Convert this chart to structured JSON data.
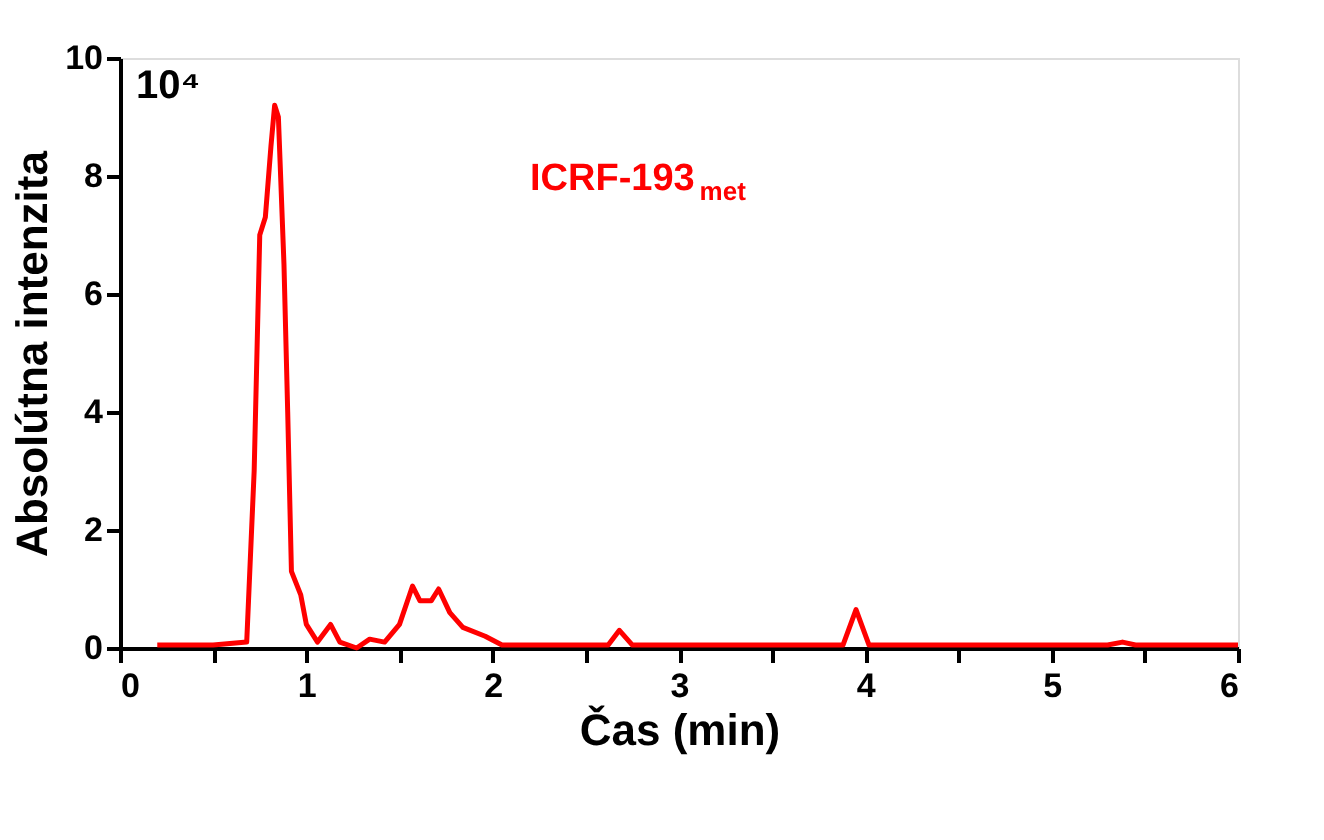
{
  "chart_data": {
    "type": "line",
    "xlabel": "Čas (min)",
    "ylabel": "Absolútna intenzita",
    "annotations": [
      "10⁴"
    ],
    "xlim": [
      0,
      6
    ],
    "ylim": [
      0,
      10
    ],
    "xticks": [
      0,
      {
        "value": 0.5,
        "label": null
      },
      1,
      {
        "value": 1.5,
        "label": null
      },
      2,
      {
        "value": 2.5,
        "label": null
      },
      3,
      {
        "value": 3.5,
        "label": null
      },
      4,
      {
        "value": 4.5,
        "label": null
      },
      5,
      {
        "value": 5.5,
        "label": null
      },
      6
    ],
    "yticks": [
      0,
      2,
      4,
      6,
      8,
      10
    ],
    "grid": false,
    "legend": false,
    "marker": "none",
    "line_style": "solid",
    "series": [
      {
        "name": "ICRF-193$_{met}$",
        "color": "#ff0000",
        "x": [
          0.2,
          0.5,
          0.68,
          0.72,
          0.75,
          0.78,
          0.81,
          0.83,
          0.85,
          0.88,
          0.9,
          0.92,
          0.97,
          1.0,
          1.06,
          1.13,
          1.18,
          1.27,
          1.34,
          1.42,
          1.5,
          1.57,
          1.61,
          1.67,
          1.71,
          1.77,
          1.84,
          1.96,
          2.05,
          2.5,
          2.62,
          2.68,
          2.75,
          3.5,
          3.88,
          3.95,
          4.02,
          4.5,
          5.3,
          5.38,
          5.45,
          6.0
        ],
        "values": [
          0.05,
          0.05,
          0.1,
          3.0,
          7.0,
          7.3,
          8.5,
          9.2,
          9.0,
          6.5,
          4.0,
          1.3,
          0.9,
          0.4,
          0.1,
          0.4,
          0.1,
          0.0,
          0.15,
          0.1,
          0.4,
          1.05,
          0.8,
          0.8,
          1.0,
          0.6,
          0.35,
          0.2,
          0.05,
          0.05,
          0.05,
          0.3,
          0.05,
          0.05,
          0.05,
          0.65,
          0.05,
          0.05,
          0.05,
          0.1,
          0.05,
          0.05
        ]
      }
    ]
  }
}
